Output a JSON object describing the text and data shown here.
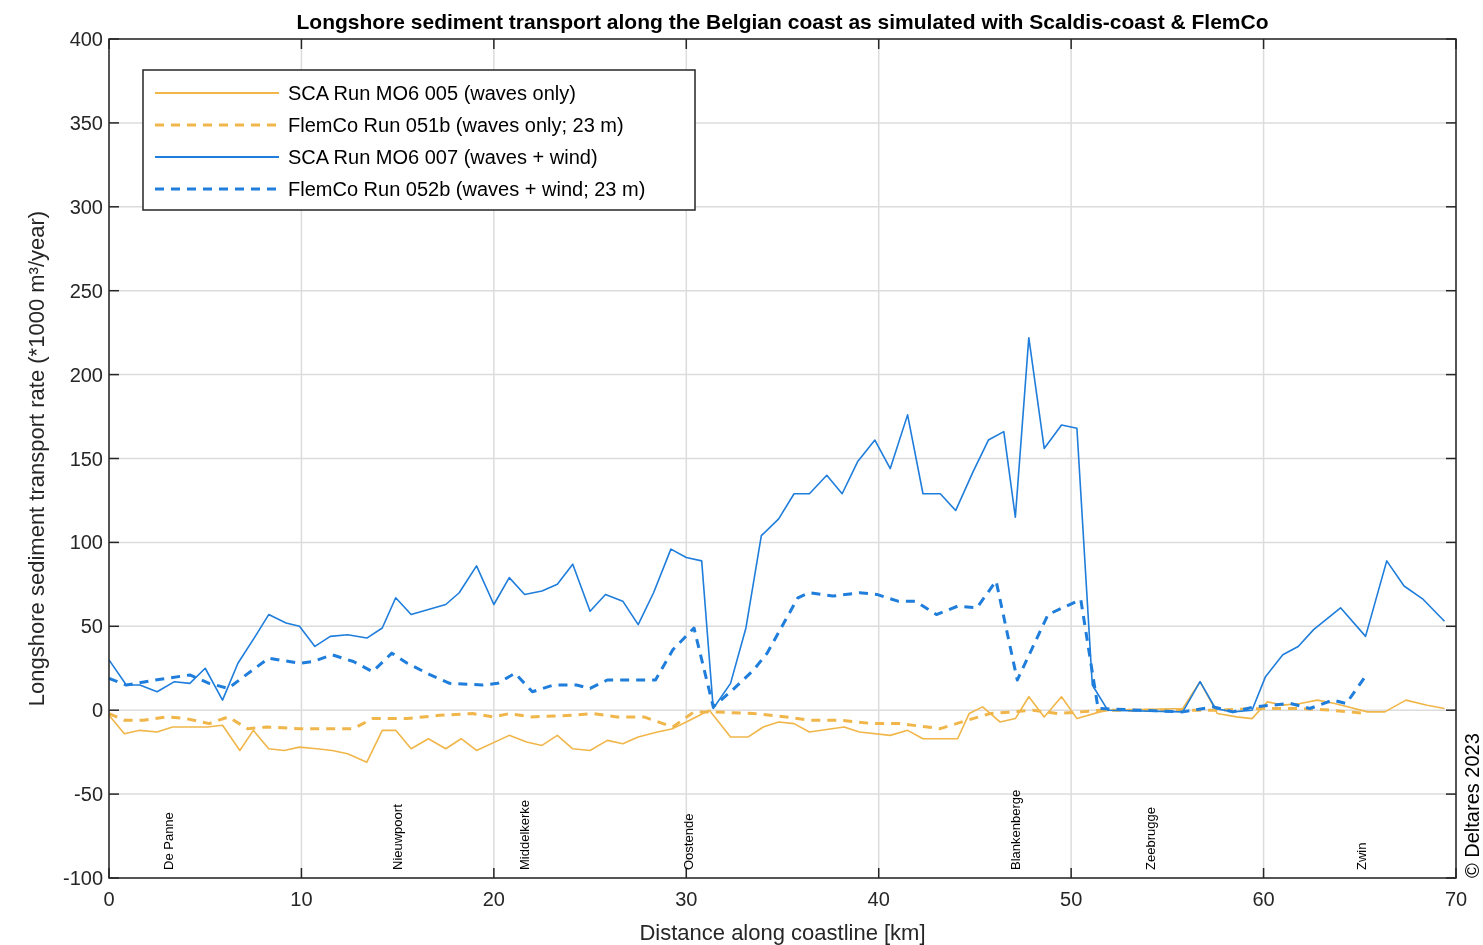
{
  "chart_data": {
    "type": "line",
    "title": "Longshore sediment transport along the Belgian coast as simulated with Scaldis-coast & FlemCo",
    "xlabel": "Distance along coastline [km]",
    "ylabel": "Longshore sediment transport rate (*1000 m³/year)",
    "xlim": [
      0,
      70
    ],
    "xticks": [
      0,
      10,
      20,
      30,
      40,
      50,
      60,
      70
    ],
    "ylim": [
      -100,
      400
    ],
    "yticks": [
      -100,
      -50,
      0,
      50,
      100,
      150,
      200,
      250,
      300,
      350,
      400
    ],
    "grid": true,
    "legend": "top left",
    "marker": "none",
    "series": [
      {
        "name": "SCA Run MO6 005 (waves only)",
        "color": "#f0b64a",
        "line_style": "solid",
        "x": [
          0,
          0.8,
          1.6,
          2.5,
          3.3,
          4.1,
          5.1,
          5.9,
          6.8,
          7.5,
          8.3,
          9.1,
          9.9,
          10.8,
          11.6,
          12.4,
          13.4,
          14.2,
          14.9,
          15.7,
          16.6,
          17.5,
          18.3,
          19.1,
          20.8,
          21.7,
          22.5,
          23.3,
          24.1,
          25.0,
          25.9,
          26.7,
          27.5,
          28.5,
          29.3,
          30.0,
          31.2,
          32.3,
          33.2,
          34.0,
          34.8,
          35.6,
          36.4,
          38.2,
          39.0,
          40.6,
          41.5,
          42.3,
          44.1,
          44.7,
          45.4,
          46.3,
          47.1,
          47.8,
          48.6,
          49.5,
          50.3,
          51.5,
          52.0,
          55.8,
          56.7,
          57.6,
          58.6,
          59.4,
          60.2,
          61.0,
          61.9,
          62.8,
          63.7,
          65.4,
          66.3,
          67.4,
          68.5,
          69.4
        ],
        "values": [
          -3,
          -14,
          -12,
          -13,
          -10,
          -10,
          -10,
          -9,
          -24,
          -12,
          -23,
          -24,
          -22,
          -23,
          -24,
          -26,
          -31,
          -12,
          -12,
          -23,
          -17,
          -23,
          -17,
          -24,
          -15,
          -19,
          -21,
          -15,
          -23,
          -24,
          -18,
          -20,
          -16,
          -13,
          -11,
          -7,
          0,
          -16,
          -16,
          -10,
          -7,
          -8,
          -13,
          -10,
          -13,
          -15,
          -12,
          -17,
          -17,
          -2,
          2,
          -7,
          -5,
          8,
          -4,
          8,
          -5,
          -1,
          0,
          1,
          17,
          -2,
          -4,
          -5,
          5,
          3,
          4,
          6,
          4,
          -1,
          -1,
          6,
          3,
          1
        ]
      },
      {
        "name": "FlemCo Run 051b (waves only; 23 m)",
        "color": "#f0b64a",
        "line_style": "dashed",
        "x": [
          0,
          0.8,
          1.8,
          3.0,
          4.0,
          5.2,
          6.2,
          7.2,
          8.2,
          9.9,
          11.6,
          12.7,
          13.7,
          15.5,
          17.2,
          18.9,
          20.0,
          20.8,
          21.9,
          24.1,
          25.2,
          26.4,
          27.8,
          29.3,
          30.4,
          31.4,
          33.5,
          35.2,
          36.4,
          38.0,
          39.7,
          41.1,
          43.2,
          44.6,
          45.8,
          47.0,
          48.0,
          49.3,
          50.5,
          51.5,
          55.8,
          57.5,
          60.0,
          62.0,
          63.5,
          65.4
        ],
        "values": [
          -2,
          -6,
          -6,
          -4,
          -5,
          -8,
          -4,
          -11,
          -10,
          -11,
          -11,
          -11,
          -5,
          -5,
          -3,
          -2,
          -4,
          -2,
          -4,
          -3,
          -2,
          -4,
          -4,
          -10,
          -1,
          -1,
          -2,
          -4,
          -6,
          -6,
          -8,
          -8,
          -11,
          -6,
          -2,
          -1,
          0,
          -2,
          -1,
          0,
          0,
          0,
          1,
          1,
          0,
          -2
        ]
      },
      {
        "name": "SCA Run MO6 007 (waves + wind)",
        "color": "#1f7ddb",
        "line_style": "solid",
        "x": [
          0,
          0.9,
          1.6,
          2.5,
          3.4,
          4.2,
          5.0,
          5.9,
          6.7,
          7.6,
          8.3,
          9.2,
          9.9,
          10.7,
          11.5,
          12.4,
          13.4,
          14.2,
          14.9,
          15.7,
          16.6,
          17.5,
          18.2,
          19.1,
          20.0,
          20.8,
          21.6,
          22.5,
          23.3,
          24.1,
          25.0,
          25.8,
          26.7,
          27.5,
          28.3,
          29.2,
          30.0,
          30.8,
          31.4,
          32.3,
          33.1,
          33.9,
          34.8,
          35.6,
          36.4,
          37.3,
          38.1,
          38.9,
          39.8,
          40.6,
          41.5,
          42.3,
          43.2,
          44.0,
          44.9,
          45.7,
          46.5,
          47.1,
          47.8,
          48.6,
          49.5,
          50.3,
          51.1,
          51.9,
          55.8,
          56.7,
          57.5,
          58.4,
          59.4,
          60.1,
          61.0,
          61.8,
          62.6,
          64.0,
          65.3,
          66.4,
          67.3,
          68.3,
          69.4
        ],
        "values": [
          30,
          15,
          15,
          11,
          17,
          16,
          25,
          6,
          28,
          44,
          57,
          52,
          50,
          38,
          44,
          45,
          43,
          49,
          67,
          57,
          60,
          63,
          70,
          86,
          63,
          79,
          69,
          71,
          75,
          87,
          59,
          69,
          65,
          51,
          70,
          96,
          91,
          89,
          1,
          16,
          49,
          104,
          114,
          129,
          129,
          140,
          129,
          148,
          161,
          144,
          176,
          129,
          129,
          119,
          142,
          161,
          166,
          115,
          222,
          156,
          170,
          168,
          15,
          0,
          -1,
          17,
          1,
          -1,
          0,
          20,
          33,
          38,
          48,
          61,
          44,
          89,
          74,
          66,
          53
        ]
      },
      {
        "name": "FlemCo Run 052b (waves + wind; 23 m)",
        "color": "#1f7ddb",
        "line_style": "dashed",
        "x": [
          0,
          0.9,
          2.4,
          4.2,
          5.2,
          6.2,
          7.0,
          8.3,
          9.9,
          10.6,
          11.6,
          12.7,
          13.7,
          14.7,
          15.5,
          16.7,
          17.7,
          19.4,
          20.2,
          21.1,
          22.0,
          23.1,
          24.3,
          25.0,
          25.9,
          28.4,
          29.3,
          30.4,
          31.4,
          32.4,
          33.5,
          34.2,
          35.8,
          36.4,
          37.6,
          39.0,
          39.9,
          41.0,
          41.9,
          43.0,
          44.1,
          45.1,
          46.1,
          47.2,
          48.8,
          50.5,
          51.4,
          55.8,
          57.4,
          58.4,
          59.5,
          61.4,
          62.4,
          63.6,
          64.3,
          65.4
        ],
        "values": [
          19,
          15,
          18,
          21,
          16,
          13,
          20,
          31,
          28,
          29,
          33,
          29,
          23,
          34,
          28,
          21,
          16,
          15,
          16,
          22,
          11,
          15,
          15,
          13,
          18,
          18,
          36,
          49,
          2,
          12,
          24,
          34,
          67,
          70,
          68,
          70,
          69,
          65,
          65,
          57,
          62,
          61,
          77,
          18,
          57,
          66,
          1,
          -1,
          2,
          -1,
          2,
          4,
          1,
          6,
          4,
          22
        ]
      }
    ],
    "annotations": [
      "De Panne",
      "Nieuwpoort",
      "Middelkerke",
      "Oostende",
      "Blankenberge",
      "Zeebrugge",
      "Zwin",
      "© Deltares 2023"
    ]
  }
}
